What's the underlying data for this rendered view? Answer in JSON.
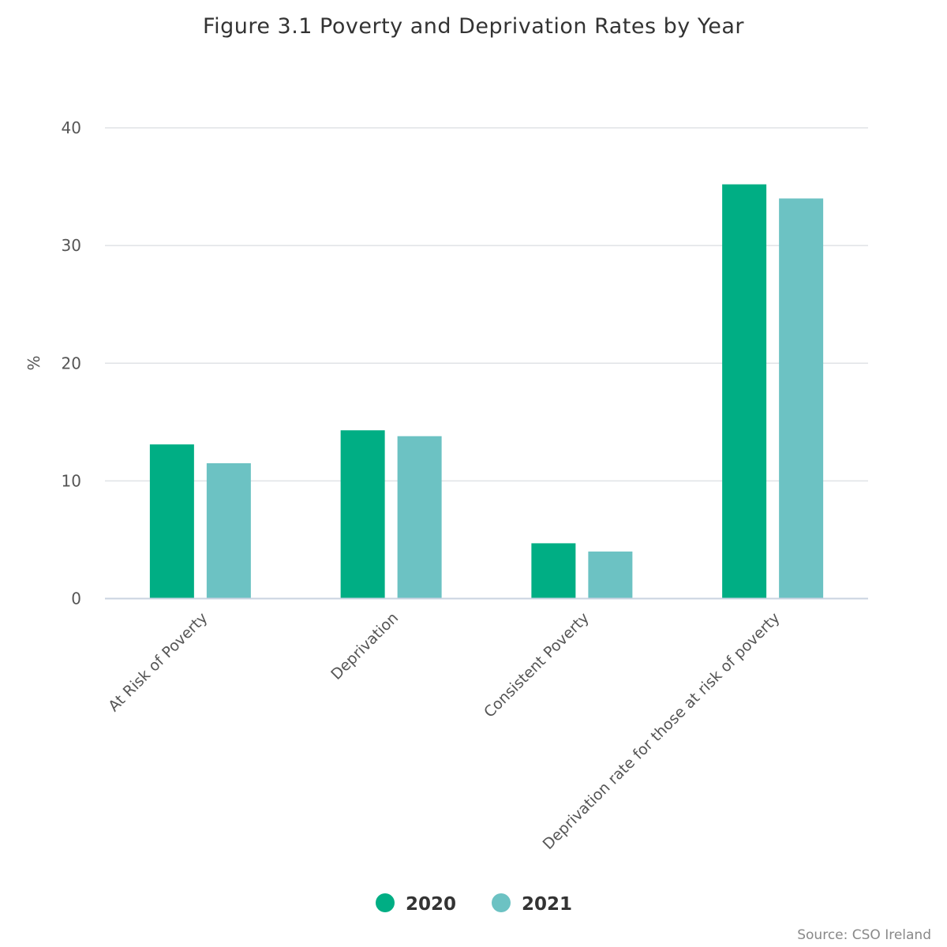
{
  "chart_data": {
    "type": "bar",
    "title": "Figure 3.1 Poverty and Deprivation Rates by Year",
    "xlabel": "",
    "ylabel": "%",
    "ylim": [
      0,
      40
    ],
    "yticks": [
      0,
      10,
      20,
      30,
      40
    ],
    "grid": true,
    "legend_position": "bottom-center",
    "categories": [
      "At Risk of Poverty",
      "Deprivation",
      "Consistent Poverty",
      "Deprivation rate for those at risk of poverty"
    ],
    "series": [
      {
        "name": "2020",
        "color": "#00ae84",
        "values": [
          13.1,
          14.3,
          4.7,
          35.2
        ]
      },
      {
        "name": "2021",
        "color": "#6cc2c3",
        "values": [
          11.5,
          13.8,
          4.0,
          34.0
        ]
      }
    ]
  },
  "credits": "Source: CSO Ireland",
  "colors": {
    "grid": "#e0e3e6",
    "axis": "#c9d3e0",
    "text": "#333333",
    "tick_text": "#555555"
  }
}
